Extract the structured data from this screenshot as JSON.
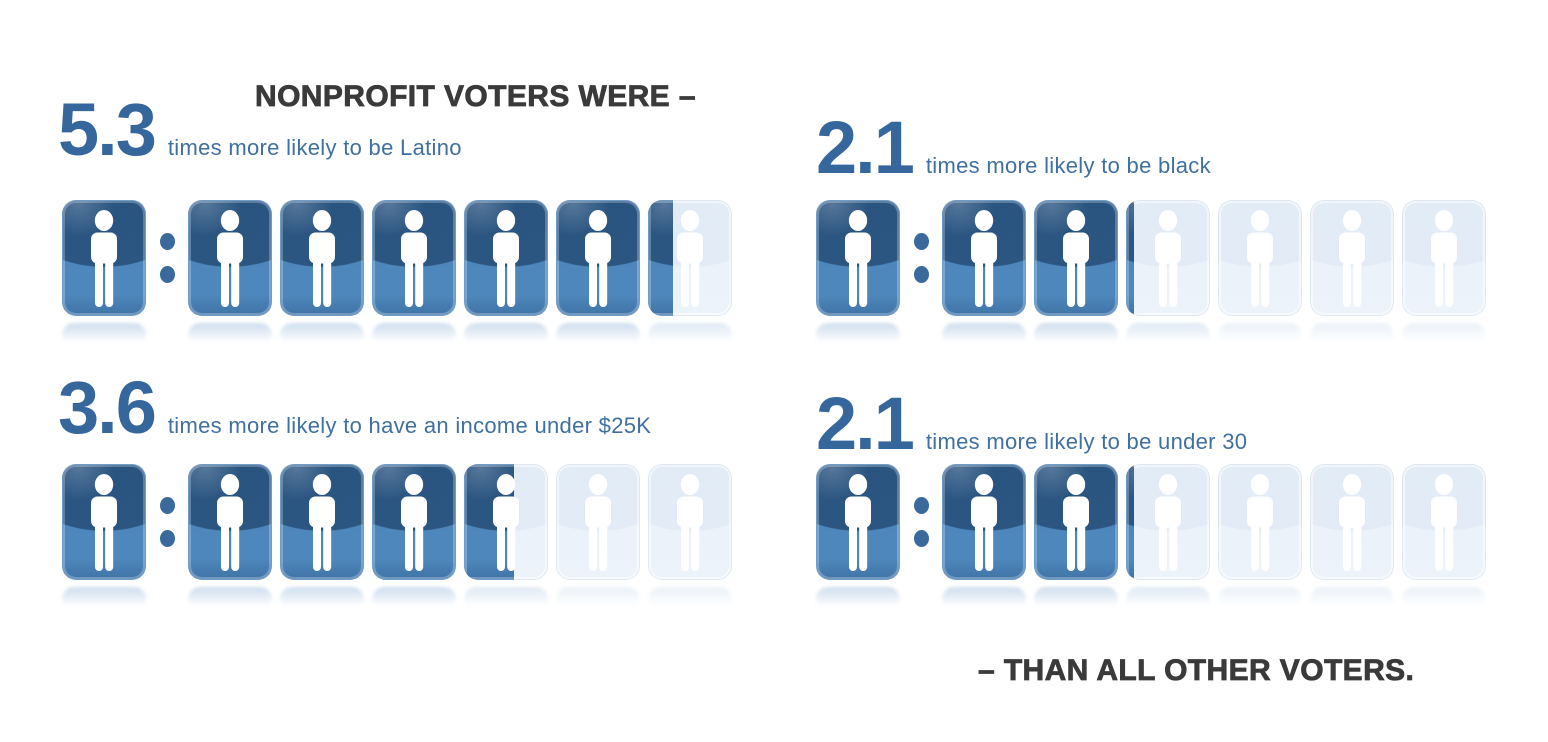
{
  "title": "NONPROFIT VOTERS WERE –",
  "footer": "– THAN ALL OTHER VOTERS.",
  "colors": {
    "accent_blue": "#36679c",
    "tile_blue_dark": "#2a5480",
    "tile_blue_light": "#4e87bc",
    "tile_ghost": "#e9f0f8",
    "text_dark": "#3a3a3a"
  },
  "stats": [
    {
      "id": "latino",
      "value": "5.3",
      "label": "times more likely to be Latino",
      "slots": 6,
      "full": 5,
      "partial": 0.3
    },
    {
      "id": "black",
      "value": "2.1",
      "label": "times more likely to be black",
      "slots": 6,
      "full": 2,
      "partial": 0.1
    },
    {
      "id": "income",
      "value": "3.6",
      "label": "times more likely to have an income under $25K",
      "slots": 6,
      "full": 3,
      "partial": 0.6
    },
    {
      "id": "under30",
      "value": "2.1",
      "label": "times more likely to be under 30",
      "slots": 6,
      "full": 2,
      "partial": 0.1
    }
  ],
  "chart_data": {
    "type": "pictograph",
    "title": "NONPROFIT VOTERS WERE –",
    "footer": "– THAN ALL OTHER VOTERS.",
    "icon": "person",
    "series": [
      {
        "label": "times more likely to be Latino",
        "value": 5.3,
        "ratio": "1 : 5.3",
        "icons_full": 5,
        "icon_partial_fraction": 0.3,
        "icon_slots": 6
      },
      {
        "label": "times more likely to be black",
        "value": 2.1,
        "ratio": "1 : 2.1",
        "icons_full": 2,
        "icon_partial_fraction": 0.1,
        "icon_slots": 6
      },
      {
        "label": "times more likely to have an income under $25K",
        "value": 3.6,
        "ratio": "1 : 3.6",
        "icons_full": 3,
        "icon_partial_fraction": 0.6,
        "icon_slots": 6
      },
      {
        "label": "times more likely to be under 30",
        "value": 2.1,
        "ratio": "1 : 2.1",
        "icons_full": 2,
        "icon_partial_fraction": 0.1,
        "icon_slots": 6
      }
    ]
  }
}
